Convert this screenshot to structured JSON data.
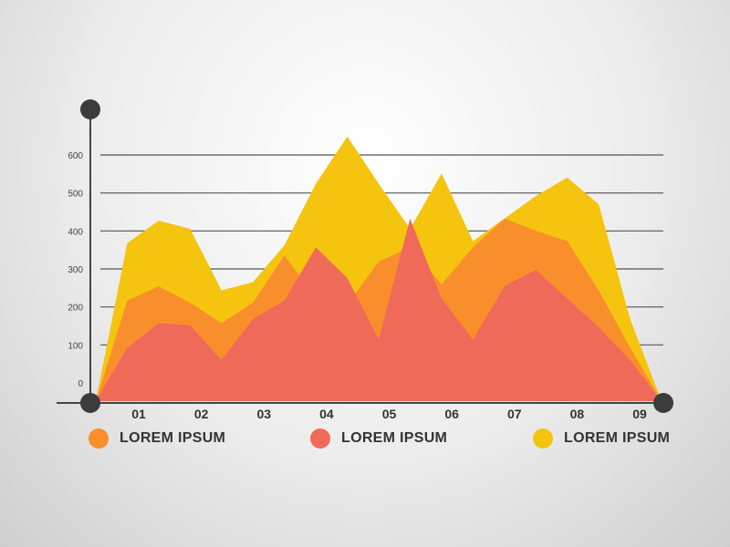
{
  "chart_data": {
    "type": "area",
    "x": [
      "",
      "01",
      "",
      "02",
      "",
      "03",
      "",
      "04",
      "",
      "05",
      "",
      "06",
      "",
      "07",
      "",
      "08",
      "",
      "09",
      ""
    ],
    "xticks": [
      "01",
      "02",
      "03",
      "04",
      "05",
      "06",
      "07",
      "08",
      "09"
    ],
    "yticks": [
      "0",
      "100",
      "200",
      "300",
      "400",
      "500",
      "600"
    ],
    "ylim": [
      0,
      600
    ],
    "grid": true,
    "legend_position": "bottom",
    "series": [
      {
        "name": "LOREM IPSUM",
        "color": "#f5c40f",
        "values": [
          0,
          385,
          440,
          420,
          270,
          290,
          380,
          530,
          645,
          530,
          420,
          555,
          390,
          445,
          500,
          545,
          480,
          200,
          0
        ]
      },
      {
        "name": "LOREM IPSUM",
        "color": "#f88f2c",
        "values": [
          0,
          245,
          280,
          240,
          190,
          240,
          355,
          250,
          235,
          340,
          375,
          285,
          375,
          445,
          415,
          390,
          270,
          130,
          0
        ]
      },
      {
        "name": "LOREM IPSUM",
        "color": "#f06a5a",
        "values": [
          0,
          130,
          190,
          185,
          100,
          200,
          245,
          375,
          300,
          150,
          445,
          250,
          150,
          280,
          320,
          250,
          180,
          100,
          0
        ]
      }
    ],
    "legend": [
      {
        "label": "LOREM IPSUM",
        "color": "#f88f2c"
      },
      {
        "label": "LOREM IPSUM",
        "color": "#f06a5a"
      },
      {
        "label": "LOREM IPSUM",
        "color": "#f5c40f"
      }
    ]
  }
}
